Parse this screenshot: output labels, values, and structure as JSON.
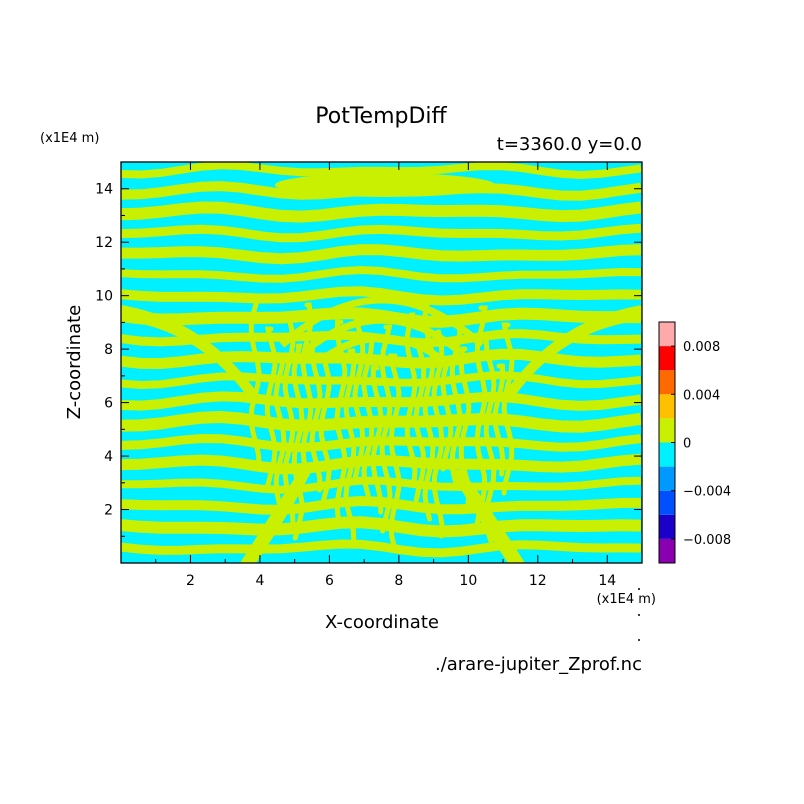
{
  "chart_data": {
    "type": "heatmap",
    "title": "PotTempDiff",
    "subtitle": "t=3360.0 y=0.0",
    "xlabel": "X-coordinate",
    "ylabel": "Z-coordinate",
    "x_unit": "(x1E4 m)",
    "y_unit": "(x1E4 m)",
    "source_file": "./arare-jupiter_Zprof.nc",
    "xlim": [
      0,
      15
    ],
    "ylim": [
      0,
      15
    ],
    "x_ticks": [
      2,
      4,
      6,
      8,
      10,
      12,
      14
    ],
    "y_ticks": [
      2,
      4,
      6,
      8,
      10,
      12,
      14
    ],
    "colorbar": {
      "range": [
        -0.01,
        0.01
      ],
      "levels": [
        -0.01,
        -0.008,
        -0.006,
        -0.004,
        -0.002,
        0,
        0.002,
        0.004,
        0.006,
        0.008,
        0.01
      ],
      "colors": [
        "#8a00b0",
        "#1a00c8",
        "#0050ff",
        "#0099ff",
        "#00f0ff",
        "#c8f000",
        "#ffc000",
        "#ff6a00",
        "#ff0000",
        "#ffaaaa"
      ],
      "tick_values": [
        -0.008,
        -0.004,
        0,
        0.004,
        0.008
      ],
      "tick_labels": [
        "−0.008",
        "−0.004",
        "0",
        "0.004",
        "0.008"
      ]
    },
    "field_colors": {
      "positive": "#c8f000",
      "negative": "#00f0ff"
    }
  }
}
